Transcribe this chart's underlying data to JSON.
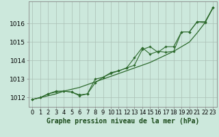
{
  "title": "Graphe pression niveau de la mer (hPa)",
  "hours": [
    0,
    1,
    2,
    3,
    4,
    5,
    6,
    7,
    8,
    9,
    10,
    11,
    12,
    13,
    14,
    15,
    16,
    17,
    18,
    19,
    20,
    21,
    22,
    23
  ],
  "series_smooth": [
    1011.9,
    1012.0,
    1012.1,
    1012.2,
    1012.35,
    1012.45,
    1012.55,
    1012.7,
    1012.85,
    1013.0,
    1013.15,
    1013.3,
    1013.45,
    1013.6,
    1013.75,
    1013.9,
    1014.1,
    1014.3,
    1014.5,
    1014.75,
    1015.0,
    1015.5,
    1016.05,
    1016.85
  ],
  "series_data1": [
    1011.9,
    1012.0,
    1012.2,
    1012.3,
    1012.35,
    1012.3,
    1012.15,
    1012.2,
    1013.0,
    1013.1,
    1013.35,
    1013.45,
    1013.6,
    1013.75,
    1014.6,
    1014.75,
    1014.45,
    1014.75,
    1014.75,
    1015.55,
    1015.55,
    1016.1,
    1016.1,
    1016.85
  ],
  "series_data2": [
    1011.9,
    1012.0,
    1012.2,
    1012.35,
    1012.35,
    1012.3,
    1012.1,
    1012.2,
    1012.8,
    1013.1,
    1013.3,
    1013.45,
    1013.6,
    1014.15,
    1014.7,
    1014.35,
    1014.5,
    1014.45,
    1014.5,
    1015.55,
    1015.55,
    1016.1,
    1016.05,
    1016.85
  ],
  "line_color": "#2d6a2d",
  "bg_color": "#cce8dc",
  "grid_color": "#aabfb5",
  "ylim_min": 1011.5,
  "ylim_max": 1017.2,
  "yticks": [
    1012,
    1013,
    1014,
    1015,
    1016
  ],
  "tick_fontsize": 6.5,
  "title_fontsize": 7.0
}
